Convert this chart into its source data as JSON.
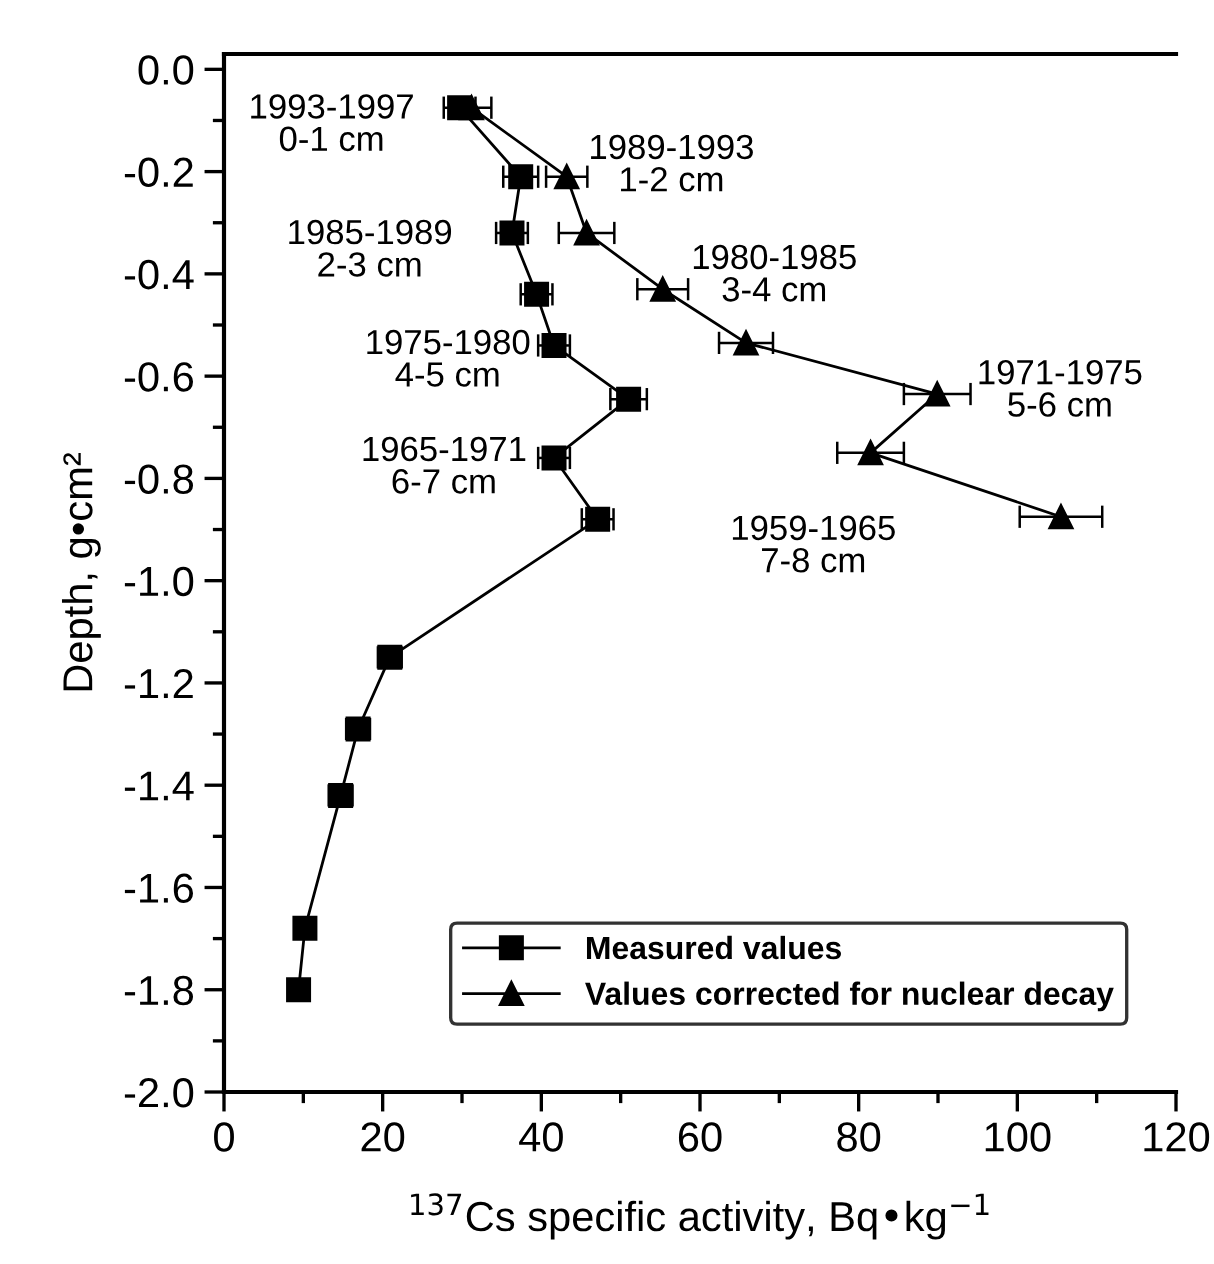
{
  "chart_data": {
    "type": "line",
    "xlabel": "$^{137}$Cs specific activity, Bq•kg$^{−1}$",
    "ylabel": "Depth, g•cm²",
    "xlim": [
      0,
      120
    ],
    "xticks": [
      0,
      20,
      40,
      60,
      80,
      100,
      120
    ],
    "ylim": [
      -2.0,
      0.03
    ],
    "yticks": [
      {
        "value": 0.0,
        "label": "0.0"
      },
      {
        "value": -0.2,
        "label": "-0.2"
      },
      {
        "value": -0.4,
        "label": "-0.4"
      },
      {
        "value": -0.6,
        "label": "-0.6"
      },
      {
        "value": -0.8,
        "label": "-0.8"
      },
      {
        "value": -1.0,
        "label": "-1.0"
      },
      {
        "value": -1.2,
        "label": "-1.2"
      },
      {
        "value": -1.4,
        "label": "-1.4"
      },
      {
        "value": -1.6,
        "label": "-1.6"
      },
      {
        "value": -1.8,
        "label": "-1.8"
      },
      {
        "value": -2.0,
        "label": "-2.0"
      }
    ],
    "grid": false,
    "legend": "bottom right",
    "series": [
      {
        "name": "Measured values",
        "color": "#000000",
        "marker": "square",
        "x": [
          29.7,
          37.4,
          36.3,
          39.4,
          41.6,
          51.0,
          41.6,
          47.1,
          20.9,
          16.9,
          14.7,
          10.2,
          9.4
        ],
        "values": [
          -0.075,
          -0.21,
          -0.32,
          -0.44,
          -0.54,
          -0.645,
          -0.76,
          -0.88,
          -1.15,
          -1.29,
          -1.42,
          -1.68,
          -1.8
        ],
        "xerrors": [
          2,
          2.2,
          2,
          2,
          2,
          2.3,
          2,
          2,
          1.5,
          1.5,
          1.5,
          1.2,
          1.2
        ]
      },
      {
        "name": "Values corrected for nuclear decay",
        "color": "#000000",
        "marker": "triangle",
        "x": [
          31.2,
          43.2,
          45.7,
          55.3,
          65.8,
          89.9,
          81.5,
          105.5
        ],
        "values": [
          -0.075,
          -0.21,
          -0.32,
          -0.43,
          -0.535,
          -0.635,
          -0.75,
          -0.875
        ],
        "xerrors": [
          2.5,
          2.6,
          3.5,
          3.2,
          3.4,
          4.2,
          4.2,
          5.2
        ]
      }
    ],
    "annotations": [
      "1993-1997\n0-1 cm",
      "1989-1993\n1-2 cm",
      "1985-1989\n2-3 cm",
      "1980-1985\n3-4 cm",
      "1975-1980\n4-5 cm",
      "1971-1975\n5-6 cm",
      "1965-1971\n6-7 cm",
      "1959-1965\n7-8 cm"
    ]
  }
}
